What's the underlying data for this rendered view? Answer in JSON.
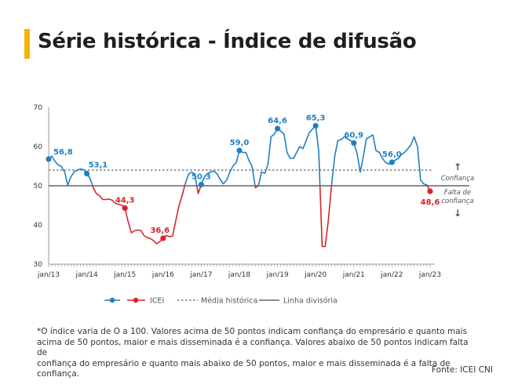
{
  "header": {
    "title": "Série histórica - Índice de difusão"
  },
  "colors": {
    "accent": "#f4b400",
    "confidence": "#1f7fc4",
    "no_confidence": "#d9232b",
    "mean": "#9a9a9a",
    "divider": "#444444"
  },
  "chart_data": {
    "type": "line",
    "title": "Série histórica - Índice de difusão",
    "ylim": [
      30,
      70
    ],
    "yticks": [
      30,
      40,
      50,
      60,
      70
    ],
    "xlim": [
      2013.0,
      2023.0
    ],
    "xticks": [
      {
        "x": 2013,
        "label": "jan/13"
      },
      {
        "x": 2014,
        "label": "jan/14"
      },
      {
        "x": 2015,
        "label": "jan/15"
      },
      {
        "x": 2016,
        "label": "jan/16"
      },
      {
        "x": 2017,
        "label": "jan/17"
      },
      {
        "x": 2018,
        "label": "jan/18"
      },
      {
        "x": 2019,
        "label": "jan/19"
      },
      {
        "x": 2020,
        "label": "jan/20"
      },
      {
        "x": 2021,
        "label": "jan/21"
      },
      {
        "x": 2022,
        "label": "jan/22"
      },
      {
        "x": 2023,
        "label": "jan/23"
      }
    ],
    "series_names": {
      "main": "ICEI",
      "mean": "Média histórica",
      "divider": "Linha divisória"
    },
    "historical_mean": 54.0,
    "divider_value": 50,
    "x": [
      2013.0,
      2013.08,
      2013.17,
      2013.25,
      2013.33,
      2013.42,
      2013.5,
      2013.58,
      2013.67,
      2013.75,
      2013.83,
      2013.92,
      2014.0,
      2014.08,
      2014.17,
      2014.25,
      2014.33,
      2014.42,
      2014.5,
      2014.58,
      2014.67,
      2014.75,
      2014.83,
      2014.92,
      2015.0,
      2015.08,
      2015.17,
      2015.25,
      2015.33,
      2015.42,
      2015.5,
      2015.58,
      2015.67,
      2015.75,
      2015.83,
      2015.92,
      2016.0,
      2016.08,
      2016.17,
      2016.25,
      2016.33,
      2016.42,
      2016.5,
      2016.58,
      2016.67,
      2016.75,
      2016.83,
      2016.92,
      2017.0,
      2017.08,
      2017.17,
      2017.25,
      2017.33,
      2017.42,
      2017.5,
      2017.58,
      2017.67,
      2017.75,
      2017.83,
      2017.92,
      2018.0,
      2018.08,
      2018.17,
      2018.25,
      2018.33,
      2018.42,
      2018.5,
      2018.58,
      2018.67,
      2018.75,
      2018.83,
      2018.92,
      2019.0,
      2019.08,
      2019.17,
      2019.25,
      2019.33,
      2019.42,
      2019.5,
      2019.58,
      2019.67,
      2019.75,
      2019.83,
      2019.92,
      2020.0,
      2020.08,
      2020.17,
      2020.25,
      2020.33,
      2020.42,
      2020.5,
      2020.58,
      2020.67,
      2020.75,
      2020.83,
      2020.92,
      2021.0,
      2021.08,
      2021.17,
      2021.25,
      2021.33,
      2021.42,
      2021.5,
      2021.58,
      2021.67,
      2021.75,
      2021.83,
      2021.92,
      2022.0,
      2022.08,
      2022.17,
      2022.25,
      2022.33,
      2022.42,
      2022.5,
      2022.58,
      2022.67,
      2022.75,
      2022.83,
      2022.92,
      2023.0
    ],
    "values": [
      56.8,
      57.6,
      56.2,
      55.3,
      55.0,
      53.5,
      50.2,
      52.2,
      53.6,
      54.0,
      54.3,
      54.1,
      53.1,
      52.0,
      49.5,
      48.0,
      47.5,
      46.5,
      46.5,
      46.6,
      46.3,
      45.5,
      45.3,
      45.0,
      44.3,
      41.0,
      38.0,
      38.5,
      38.7,
      38.6,
      37.3,
      36.8,
      36.5,
      36.0,
      35.2,
      35.8,
      36.6,
      37.3,
      37.0,
      37.2,
      41.0,
      45.0,
      47.5,
      50.5,
      53.0,
      53.5,
      53.0,
      48.0,
      50.3,
      52.2,
      53.2,
      53.5,
      53.8,
      53.0,
      51.5,
      50.5,
      51.5,
      53.5,
      55.0,
      56.0,
      59.0,
      58.5,
      58.5,
      56.5,
      55.0,
      49.5,
      50.0,
      53.5,
      53.2,
      55.5,
      62.5,
      63.2,
      64.6,
      64.0,
      63.2,
      58.5,
      57.0,
      57.0,
      58.5,
      60.0,
      59.5,
      61.5,
      63.5,
      64.5,
      65.3,
      59.0,
      34.5,
      34.5,
      41.0,
      50.5,
      57.5,
      61.5,
      61.8,
      62.5,
      62.0,
      61.5,
      60.9,
      58.5,
      53.5,
      57.5,
      62.0,
      62.5,
      63.0,
      59.0,
      58.5,
      57.0,
      56.0,
      55.5,
      56.0,
      56.5,
      57.0,
      58.0,
      58.5,
      59.5,
      60.5,
      62.5,
      60.0,
      51.5,
      50.5,
      50.2,
      48.6
    ],
    "point_labels": [
      {
        "x": 2013.0,
        "value": 56.8,
        "label": "56,8",
        "color": "confidence"
      },
      {
        "x": 2014.0,
        "value": 53.1,
        "label": "53,1",
        "color": "confidence"
      },
      {
        "x": 2015.0,
        "value": 44.3,
        "label": "44,3",
        "color": "no_confidence"
      },
      {
        "x": 2016.0,
        "value": 36.6,
        "label": "36,6",
        "color": "no_confidence"
      },
      {
        "x": 2017.0,
        "value": 50.3,
        "label": "50,3",
        "color": "confidence"
      },
      {
        "x": 2018.0,
        "value": 59.0,
        "label": "59,0",
        "color": "confidence"
      },
      {
        "x": 2019.0,
        "value": 64.6,
        "label": "64,6",
        "color": "confidence"
      },
      {
        "x": 2020.0,
        "value": 65.3,
        "label": "65,3",
        "color": "confidence"
      },
      {
        "x": 2021.0,
        "value": 60.9,
        "label": "60,9",
        "color": "confidence"
      },
      {
        "x": 2022.0,
        "value": 56.0,
        "label": "56,0",
        "color": "confidence"
      },
      {
        "x": 2023.0,
        "value": 48.6,
        "label": "48,6",
        "color": "no_confidence"
      }
    ],
    "side_labels": {
      "confidence": "Confiança",
      "no_confidence_line1": "Falta de",
      "no_confidence_line2": "confiança"
    },
    "legend_placement": "bottom"
  },
  "footnote": {
    "line1": "*O índice varia de O a 100. Valores acima de 50 pontos indicam confiança do empresário e quanto mais",
    "line2": "acima de 50 pontos, maior e mais disseminada é a confiança. Valores abaixo de 50 pontos indicam falta de",
    "line3": "confiança do empresário e quanto mais abaixo de 50 pontos, maior e mais disseminada é a falta de confiança."
  },
  "source": "Fonte: ICEI CNI"
}
